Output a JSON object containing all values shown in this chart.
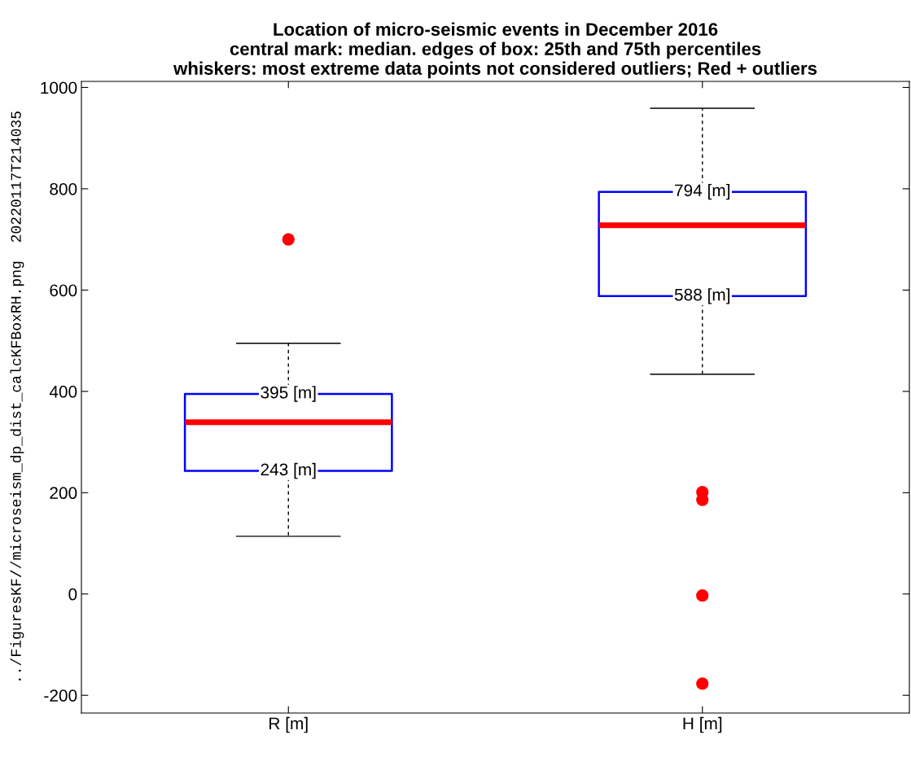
{
  "chart_data": {
    "type": "box",
    "title": "Location of micro-seismic events in December 2016\ncentral mark: median. edges of box: 25th and 75th percentiles\nwhiskers: most extreme data points not considered outliers; Red + outliers",
    "ylabel": "../FiguresKF//microseism_dp_dist_calcKFBoxRH.png  20220117T214035",
    "categories": [
      "R [m]",
      "H [m]"
    ],
    "boxes": [
      {
        "low": 114,
        "q1": 243,
        "median": 339,
        "q3": 395,
        "high": 495,
        "outliers": [
          700
        ]
      },
      {
        "low": 434,
        "q1": 588,
        "median": 728,
        "q3": 794,
        "high": 959,
        "outliers": [
          201,
          186,
          -3,
          -177
        ]
      }
    ],
    "color": "#0000ff",
    "ylim": [
      -235,
      1012
    ],
    "yticks": [
      -200,
      0,
      200,
      400,
      600,
      800,
      1000
    ],
    "grid": false,
    "annotations": [
      {
        "text": "395 [m]",
        "x": "R [m]",
        "y": 395
      },
      {
        "text": "243 [m]",
        "x": "R [m]",
        "y": 243
      },
      {
        "text": "794 [m]",
        "x": "H [m]",
        "y": 794
      },
      {
        "text": "588 [m]",
        "x": "H [m]",
        "y": 588
      }
    ]
  }
}
